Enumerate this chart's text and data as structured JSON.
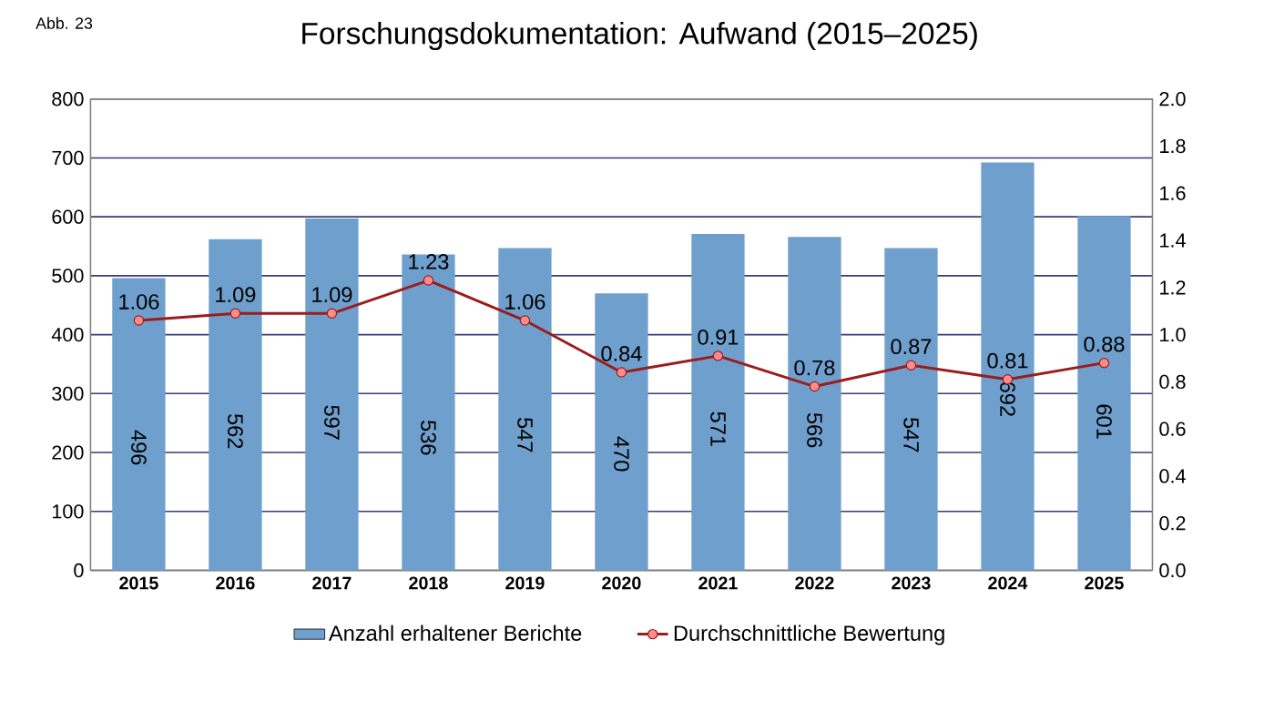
{
  "chart_data": {
    "type": "bar",
    "title": "Forschungsdokumentation: Aufwand (2015–2025)",
    "annotations": [
      "Abb. 23"
    ],
    "categories": [
      "2015",
      "2016",
      "2017",
      "2018",
      "2019",
      "2020",
      "2021",
      "2022",
      "2023",
      "2024",
      "2025"
    ],
    "series": [
      {
        "name": "Anzahl erhaltener Berichte",
        "color": "#6fa0cd",
        "values": [
          496,
          562,
          597,
          536,
          547,
          470,
          571,
          566,
          547,
          692,
          601
        ]
      },
      {
        "name": "Durchschnittliche Bewertung",
        "type": "line",
        "axis": "y2",
        "color": "#9b1c1c",
        "marker": "circle",
        "values": [
          1.06,
          1.09,
          1.09,
          1.23,
          1.06,
          0.84,
          0.91,
          0.78,
          0.87,
          0.81,
          0.88
        ]
      }
    ],
    "ylim": [
      0,
      800
    ],
    "yticks": [
      0,
      100,
      200,
      300,
      400,
      500,
      600,
      700,
      800
    ],
    "y2lim": [
      0,
      2
    ],
    "y2ticks": [
      {
        "value": 0,
        "label": "0.0"
      },
      {
        "value": 0.2,
        "label": "0.2"
      },
      {
        "value": 0.4,
        "label": "0.4"
      },
      {
        "value": 0.6,
        "label": "0.6"
      },
      {
        "value": 0.8,
        "label": "0.8"
      },
      {
        "value": 1,
        "label": "1.0"
      },
      {
        "value": 1.2,
        "label": "1.2"
      },
      {
        "value": 1.4,
        "label": "1.4"
      },
      {
        "value": 1.6,
        "label": "1.6"
      },
      {
        "value": 1.8,
        "label": "1.8"
      },
      {
        "value": 2,
        "label": "2.0"
      }
    ],
    "grid": "y",
    "legend": "bottom",
    "data_labels": true
  }
}
